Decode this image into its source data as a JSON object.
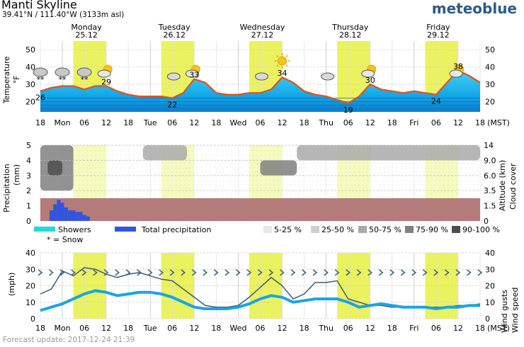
{
  "header": {
    "title": "Manti Skyline",
    "coords": "39.41°N / 111.40°W (3133m asl)",
    "logo": "meteoblue"
  },
  "days": [
    {
      "name": "Monday",
      "date": "25.12"
    },
    {
      "name": "Tuesday",
      "date": "26.12"
    },
    {
      "name": "Wednesday",
      "date": "27.12"
    },
    {
      "name": "Thursday",
      "date": "28.12"
    },
    {
      "name": "Friday",
      "date": "29.12"
    }
  ],
  "time_labels": [
    "18",
    "Mon",
    "06",
    "12",
    "18",
    "Tue",
    "06",
    "12",
    "18",
    "Wed",
    "06",
    "12",
    "18",
    "Thu",
    "06",
    "12",
    "18",
    "Fri",
    "06",
    "12",
    "18"
  ],
  "tz": "(MST)",
  "colors": {
    "daylight": "#eaf25f",
    "temp_fill_top": "#3ec6f0",
    "temp_fill_bottom": "#0a8fd8",
    "temp_line": "#e0521c",
    "precip_band": "#b57a7a",
    "total_precip": "#3355dd",
    "showers": "#22d8d8",
    "wind_speed": "#1aa3e8",
    "wind_gust": "#3d5a74"
  },
  "chart_data": [
    {
      "type": "area",
      "ylabel": "Temperature °F",
      "ylim": [
        14,
        55
      ],
      "yticks": [
        20,
        30,
        40,
        50
      ],
      "grid": true,
      "x_hours": [
        0,
        3,
        6,
        9,
        12,
        15,
        18,
        21,
        24,
        27,
        30,
        33,
        36,
        39,
        42,
        45,
        48,
        51,
        54,
        57,
        60,
        63,
        66,
        69,
        72,
        75,
        78,
        81,
        84,
        87,
        90,
        93,
        96,
        99,
        102,
        105,
        108,
        111,
        114,
        117,
        120
      ],
      "temperature": [
        26,
        28,
        29,
        29,
        27,
        29,
        29,
        26,
        24,
        23,
        23,
        23,
        22,
        25,
        33,
        31,
        25,
        24,
        24,
        25,
        25,
        27,
        34,
        31,
        26,
        24,
        23,
        21,
        19,
        23,
        30,
        27,
        26,
        25,
        26,
        25,
        24,
        31,
        38,
        35,
        31
      ],
      "labels": [
        {
          "hour": 0,
          "value": "26"
        },
        {
          "hour": 18,
          "value": "29"
        },
        {
          "hour": 36,
          "value": "22"
        },
        {
          "hour": 42,
          "value": "33"
        },
        {
          "hour": 66,
          "value": "34"
        },
        {
          "hour": 84,
          "value": "19"
        },
        {
          "hour": 90,
          "value": "30"
        },
        {
          "hour": 108,
          "value": "24"
        },
        {
          "hour": 114,
          "value": "38"
        }
      ],
      "icons": [
        {
          "hour": 0,
          "icon": "snow-cloud-night-icon"
        },
        {
          "hour": 6,
          "icon": "snow-cloud-night-icon"
        },
        {
          "hour": 12,
          "icon": "snow-cloud-night-icon"
        },
        {
          "hour": 18,
          "icon": "partly-cloudy-day-icon"
        },
        {
          "hour": 24,
          "icon": "moon-icon"
        },
        {
          "hour": 30,
          "icon": "moon-icon"
        },
        {
          "hour": 36,
          "icon": "cloud-night-icon"
        },
        {
          "hour": 42,
          "icon": "partly-cloudy-day-icon"
        },
        {
          "hour": 48,
          "icon": "moon-icon"
        },
        {
          "hour": 54,
          "icon": "moon-icon"
        },
        {
          "hour": 60,
          "icon": "cloud-night-icon"
        },
        {
          "hour": 66,
          "icon": "sun-icon"
        },
        {
          "hour": 72,
          "icon": "moon-icon"
        },
        {
          "hour": 78,
          "icon": "cloud-night-icon"
        },
        {
          "hour": 84,
          "icon": "moon-icon"
        },
        {
          "hour": 90,
          "icon": "partly-cloudy-day-icon"
        },
        {
          "hour": 96,
          "icon": "moon-icon"
        },
        {
          "hour": 102,
          "icon": "moon-icon"
        },
        {
          "hour": 108,
          "icon": "moon-icon"
        },
        {
          "hour": 114,
          "icon": "partly-cloudy-day-icon"
        },
        {
          "hour": 120,
          "icon": "moon-icon"
        }
      ]
    },
    {
      "type": "heatmap",
      "ylabel_left": "Precipitation (mm)",
      "ylabel_right": "Altitude (km) Cloud cover",
      "left_ticks": [
        "0",
        "1",
        "2",
        "3",
        "4",
        "5"
      ],
      "right_ticks": [
        "0",
        "1.5",
        "3.5",
        "6.0",
        "9.0",
        "14"
      ],
      "legend": {
        "showers": "Showers",
        "total": "Total precipitation",
        "snow_note": "* = Snow",
        "cloud_classes": [
          "5-25 %",
          "25-50 %",
          "50-75 %",
          "75-90 %",
          "90-100 %"
        ]
      },
      "total_precipitation_mm": [
        {
          "hour": 3,
          "value": 0.7
        },
        {
          "hour": 4,
          "value": 1.1
        },
        {
          "hour": 5,
          "value": 1.4
        },
        {
          "hour": 6,
          "value": 1.2
        },
        {
          "hour": 7,
          "value": 0.9
        },
        {
          "hour": 8,
          "value": 0.7
        },
        {
          "hour": 9,
          "value": 0.7
        },
        {
          "hour": 10,
          "value": 0.6
        },
        {
          "hour": 11,
          "value": 0.6
        },
        {
          "hour": 12,
          "value": 0.4
        },
        {
          "hour": 13,
          "value": 0.3
        }
      ],
      "cloud_patches": [
        {
          "start_hour": 0,
          "end_hour": 9,
          "low_km": 3.5,
          "high_km": 14,
          "coverage": "75-90 %"
        },
        {
          "start_hour": 2,
          "end_hour": 6,
          "low_km": 6.0,
          "high_km": 9.0,
          "coverage": "90-100 %"
        },
        {
          "start_hour": 28,
          "end_hour": 40,
          "low_km": 9.0,
          "high_km": 14,
          "coverage": "50-75 %"
        },
        {
          "start_hour": 60,
          "end_hour": 70,
          "low_km": 6.0,
          "high_km": 9.0,
          "coverage": "75-90 %"
        },
        {
          "start_hour": 70,
          "end_hour": 120,
          "low_km": 9.0,
          "high_km": 14,
          "coverage": "50-75 %"
        }
      ]
    },
    {
      "type": "line",
      "ylabel": "(mph)",
      "ylabel_right": "Wind gusts Wind speed",
      "ylim": [
        0,
        40
      ],
      "yticks": [
        0,
        10,
        20,
        30,
        40
      ],
      "x_hours": [
        0,
        3,
        6,
        9,
        12,
        15,
        18,
        21,
        24,
        27,
        30,
        33,
        36,
        39,
        42,
        45,
        48,
        51,
        54,
        57,
        60,
        63,
        66,
        69,
        72,
        75,
        78,
        81,
        84,
        87,
        90,
        93,
        96,
        99,
        102,
        105,
        108,
        111,
        114,
        117,
        120
      ],
      "series": [
        {
          "name": "Wind gusts",
          "values": [
            15,
            18,
            29,
            26,
            31,
            30,
            27,
            25,
            27,
            28,
            26,
            24,
            23,
            18,
            13,
            8,
            7,
            7,
            8,
            13,
            19,
            25,
            20,
            12,
            15,
            22,
            22,
            23,
            12,
            10,
            8,
            8,
            7,
            7,
            7,
            7,
            7,
            7,
            8,
            8,
            9
          ]
        },
        {
          "name": "Wind speed",
          "values": [
            5,
            7,
            9,
            12,
            15,
            17,
            16,
            14,
            15,
            16,
            16,
            15,
            13,
            10,
            7,
            6,
            6,
            6,
            7,
            9,
            12,
            14,
            13,
            10,
            11,
            12,
            12,
            12,
            10,
            7,
            8,
            9,
            8,
            7,
            7,
            7,
            6,
            7,
            7,
            8,
            8
          ]
        }
      ],
      "wind_direction_level_mph": 28
    }
  ],
  "footer": "Forecast update: 2017-12-24 21:39"
}
